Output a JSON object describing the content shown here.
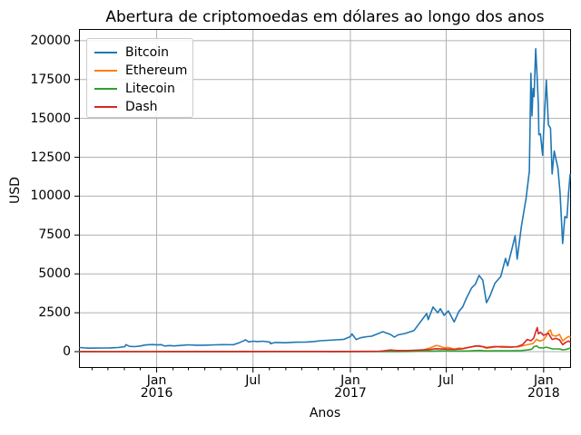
{
  "chart_data": {
    "type": "line",
    "title": "Abertura de criptomoedas em dólares ao longo dos anos",
    "xlabel": "Anos",
    "ylabel": "USD",
    "grid": true,
    "legend_position": "upper-left",
    "grid_color": "#b0b0b0",
    "spine_color": "#000000",
    "x_range": [
      "2015-08-09",
      "2018-02-20"
    ],
    "ylim": [
      -990,
      20690
    ],
    "y_ticks": [
      0,
      2500,
      5000,
      7500,
      10000,
      12500,
      15000,
      17500,
      20000
    ],
    "x_ticks": [
      {
        "date": "2016-01-01",
        "label": "Jan",
        "year": "2016"
      },
      {
        "date": "2016-07-01",
        "label": "Jul",
        "year": ""
      },
      {
        "date": "2017-01-01",
        "label": "Jan",
        "year": "2017"
      },
      {
        "date": "2017-07-01",
        "label": "Jul",
        "year": ""
      },
      {
        "date": "2018-01-01",
        "label": "Jan",
        "year": "2018"
      }
    ],
    "series": [
      {
        "name": "Bitcoin",
        "color": "#1f77b4",
        "points": [
          [
            "2015-08-09",
            265
          ],
          [
            "2015-08-20",
            235
          ],
          [
            "2015-08-25",
            222
          ],
          [
            "2015-09-05",
            230
          ],
          [
            "2015-09-20",
            231
          ],
          [
            "2015-10-05",
            240
          ],
          [
            "2015-10-20",
            264
          ],
          [
            "2015-11-02",
            325
          ],
          [
            "2015-11-04",
            452
          ],
          [
            "2015-11-11",
            338
          ],
          [
            "2015-11-20",
            322
          ],
          [
            "2015-12-01",
            362
          ],
          [
            "2015-12-09",
            418
          ],
          [
            "2015-12-15",
            445
          ],
          [
            "2015-12-25",
            455
          ],
          [
            "2016-01-01",
            434
          ],
          [
            "2016-01-10",
            448
          ],
          [
            "2016-01-16",
            365
          ],
          [
            "2016-01-25",
            392
          ],
          [
            "2016-02-03",
            369
          ],
          [
            "2016-02-15",
            395
          ],
          [
            "2016-03-01",
            435
          ],
          [
            "2016-03-15",
            415
          ],
          [
            "2016-04-01",
            416
          ],
          [
            "2016-04-20",
            438
          ],
          [
            "2016-05-05",
            448
          ],
          [
            "2016-05-25",
            444
          ],
          [
            "2016-06-05",
            573
          ],
          [
            "2016-06-13",
            686
          ],
          [
            "2016-06-17",
            760
          ],
          [
            "2016-06-23",
            625
          ],
          [
            "2016-07-01",
            673
          ],
          [
            "2016-07-10",
            650
          ],
          [
            "2016-07-20",
            672
          ],
          [
            "2016-08-02",
            607
          ],
          [
            "2016-08-03",
            515
          ],
          [
            "2016-08-12",
            590
          ],
          [
            "2016-09-01",
            572
          ],
          [
            "2016-09-20",
            608
          ],
          [
            "2016-10-10",
            618
          ],
          [
            "2016-10-25",
            652
          ],
          [
            "2016-11-05",
            703
          ],
          [
            "2016-11-20",
            730
          ],
          [
            "2016-12-05",
            758
          ],
          [
            "2016-12-20",
            792
          ],
          [
            "2017-01-01",
            966
          ],
          [
            "2017-01-04",
            1135
          ],
          [
            "2017-01-12",
            775
          ],
          [
            "2017-01-20",
            895
          ],
          [
            "2017-02-01",
            965
          ],
          [
            "2017-02-10",
            990
          ],
          [
            "2017-02-24",
            1180
          ],
          [
            "2017-03-03",
            1280
          ],
          [
            "2017-03-12",
            1175
          ],
          [
            "2017-03-18",
            1100
          ],
          [
            "2017-03-25",
            935
          ],
          [
            "2017-04-01",
            1080
          ],
          [
            "2017-04-15",
            1175
          ],
          [
            "2017-05-01",
            1350
          ],
          [
            "2017-05-10",
            1760
          ],
          [
            "2017-05-25",
            2450
          ],
          [
            "2017-05-28",
            2060
          ],
          [
            "2017-06-06",
            2870
          ],
          [
            "2017-06-15",
            2500
          ],
          [
            "2017-06-20",
            2760
          ],
          [
            "2017-06-27",
            2330
          ],
          [
            "2017-07-05",
            2620
          ],
          [
            "2017-07-16",
            1910
          ],
          [
            "2017-07-25",
            2580
          ],
          [
            "2017-08-01",
            2870
          ],
          [
            "2017-08-08",
            3420
          ],
          [
            "2017-08-18",
            4100
          ],
          [
            "2017-08-25",
            4330
          ],
          [
            "2017-09-01",
            4900
          ],
          [
            "2017-09-08",
            4600
          ],
          [
            "2017-09-15",
            3150
          ],
          [
            "2017-09-22",
            3600
          ],
          [
            "2017-10-01",
            4400
          ],
          [
            "2017-10-12",
            4830
          ],
          [
            "2017-10-21",
            6000
          ],
          [
            "2017-10-25",
            5520
          ],
          [
            "2017-11-01",
            6450
          ],
          [
            "2017-11-08",
            7450
          ],
          [
            "2017-11-12",
            5950
          ],
          [
            "2017-11-20",
            8040
          ],
          [
            "2017-11-29",
            9900
          ],
          [
            "2017-12-05",
            11600
          ],
          [
            "2017-12-08",
            17900
          ],
          [
            "2017-12-10",
            15160
          ],
          [
            "2017-12-12",
            16920
          ],
          [
            "2017-12-14",
            16400
          ],
          [
            "2017-12-17",
            19475
          ],
          [
            "2017-12-20",
            17520
          ],
          [
            "2017-12-22",
            15900
          ],
          [
            "2017-12-23",
            13950
          ],
          [
            "2017-12-26",
            14000
          ],
          [
            "2017-12-30",
            12630
          ],
          [
            "2018-01-01",
            14110
          ],
          [
            "2018-01-06",
            17460
          ],
          [
            "2018-01-10",
            14590
          ],
          [
            "2018-01-14",
            14370
          ],
          [
            "2018-01-17",
            11430
          ],
          [
            "2018-01-21",
            12900
          ],
          [
            "2018-01-28",
            11790
          ],
          [
            "2018-02-01",
            10240
          ],
          [
            "2018-02-06",
            6955
          ],
          [
            "2018-02-10",
            8690
          ],
          [
            "2018-02-14",
            8600
          ],
          [
            "2018-02-17",
            10200
          ],
          [
            "2018-02-20",
            11400
          ]
        ]
      },
      {
        "name": "Ethereum",
        "color": "#ff7f0e",
        "points": [
          [
            "2015-08-09",
            1.3
          ],
          [
            "2015-09-01",
            1.35
          ],
          [
            "2015-10-01",
            0.74
          ],
          [
            "2015-11-01",
            1.05
          ],
          [
            "2015-12-01",
            0.87
          ],
          [
            "2016-01-01",
            0.94
          ],
          [
            "2016-01-25",
            2.1
          ],
          [
            "2016-02-10",
            4.5
          ],
          [
            "2016-03-02",
            8.2
          ],
          [
            "2016-03-13",
            15
          ],
          [
            "2016-04-01",
            11.6
          ],
          [
            "2016-05-01",
            8.9
          ],
          [
            "2016-06-01",
            14
          ],
          [
            "2016-06-16",
            20.6
          ],
          [
            "2016-06-18",
            11
          ],
          [
            "2016-07-01",
            12.3
          ],
          [
            "2016-08-01",
            11
          ],
          [
            "2016-09-01",
            11.2
          ],
          [
            "2016-10-01",
            13.3
          ],
          [
            "2016-11-01",
            10.9
          ],
          [
            "2016-12-01",
            8.6
          ],
          [
            "2017-01-01",
            8.2
          ],
          [
            "2017-02-01",
            10.7
          ],
          [
            "2017-03-01",
            15.8
          ],
          [
            "2017-03-17",
            44
          ],
          [
            "2017-04-01",
            50
          ],
          [
            "2017-04-20",
            48
          ],
          [
            "2017-05-01",
            77
          ],
          [
            "2017-05-20",
            124
          ],
          [
            "2017-05-31",
            232
          ],
          [
            "2017-06-12",
            395
          ],
          [
            "2017-06-18",
            359
          ],
          [
            "2017-06-27",
            254
          ],
          [
            "2017-07-05",
            269
          ],
          [
            "2017-07-16",
            157
          ],
          [
            "2017-07-25",
            225
          ],
          [
            "2017-08-01",
            204
          ],
          [
            "2017-08-15",
            299
          ],
          [
            "2017-09-01",
            387
          ],
          [
            "2017-09-15",
            219
          ],
          [
            "2017-10-01",
            303
          ],
          [
            "2017-10-15",
            336
          ],
          [
            "2017-11-01",
            305
          ],
          [
            "2017-11-15",
            315
          ],
          [
            "2017-12-01",
            445
          ],
          [
            "2017-12-12",
            522
          ],
          [
            "2017-12-19",
            793
          ],
          [
            "2017-12-24",
            685
          ],
          [
            "2018-01-01",
            756
          ],
          [
            "2018-01-06",
            1006
          ],
          [
            "2018-01-10",
            1298
          ],
          [
            "2018-01-14",
            1396
          ],
          [
            "2018-01-17",
            1057
          ],
          [
            "2018-01-24",
            990
          ],
          [
            "2018-01-31",
            1109
          ],
          [
            "2018-02-06",
            697
          ],
          [
            "2018-02-12",
            865
          ],
          [
            "2018-02-17",
            976
          ],
          [
            "2018-02-20",
            943
          ]
        ]
      },
      {
        "name": "Litecoin",
        "color": "#2ca02c",
        "points": [
          [
            "2015-08-09",
            4.2
          ],
          [
            "2015-09-01",
            3.8
          ],
          [
            "2015-10-01",
            3
          ],
          [
            "2015-11-01",
            3.1
          ],
          [
            "2015-11-10",
            3.6
          ],
          [
            "2015-12-01",
            3.4
          ],
          [
            "2016-01-01",
            3.5
          ],
          [
            "2016-02-01",
            3.2
          ],
          [
            "2016-03-01",
            3.8
          ],
          [
            "2016-04-01",
            3.3
          ],
          [
            "2016-05-01",
            3.4
          ],
          [
            "2016-06-01",
            4.5
          ],
          [
            "2016-06-17",
            5.3
          ],
          [
            "2016-07-01",
            4.1
          ],
          [
            "2016-08-01",
            4
          ],
          [
            "2016-09-01",
            3.8
          ],
          [
            "2016-10-01",
            3.8
          ],
          [
            "2016-11-01",
            3.9
          ],
          [
            "2016-12-01",
            3.7
          ],
          [
            "2017-01-01",
            4.3
          ],
          [
            "2017-02-01",
            3.9
          ],
          [
            "2017-03-01",
            3.8
          ],
          [
            "2017-04-01",
            7.3
          ],
          [
            "2017-04-20",
            10.4
          ],
          [
            "2017-05-02",
            15.6
          ],
          [
            "2017-05-10",
            30
          ],
          [
            "2017-05-25",
            33
          ],
          [
            "2017-06-06",
            34.5
          ],
          [
            "2017-06-20",
            47
          ],
          [
            "2017-07-05",
            48
          ],
          [
            "2017-07-16",
            39
          ],
          [
            "2017-08-01",
            42.5
          ],
          [
            "2017-08-15",
            46.5
          ],
          [
            "2017-09-01",
            77
          ],
          [
            "2017-09-15",
            47
          ],
          [
            "2017-10-01",
            55
          ],
          [
            "2017-11-01",
            55
          ],
          [
            "2017-11-20",
            71
          ],
          [
            "2017-12-01",
            103
          ],
          [
            "2017-12-09",
            151
          ],
          [
            "2017-12-12",
            233
          ],
          [
            "2017-12-13",
            317
          ],
          [
            "2017-12-19",
            366
          ],
          [
            "2017-12-23",
            250
          ],
          [
            "2017-12-31",
            232
          ],
          [
            "2018-01-06",
            285
          ],
          [
            "2018-01-17",
            183
          ],
          [
            "2018-01-28",
            177
          ],
          [
            "2018-02-01",
            163
          ],
          [
            "2018-02-06",
            115
          ],
          [
            "2018-02-12",
            143
          ],
          [
            "2018-02-20",
            222
          ]
        ]
      },
      {
        "name": "Dash",
        "color": "#d62728",
        "points": [
          [
            "2015-08-09",
            3.2
          ],
          [
            "2015-09-01",
            2.5
          ],
          [
            "2015-10-01",
            2.4
          ],
          [
            "2015-11-01",
            2.3
          ],
          [
            "2015-12-01",
            3.1
          ],
          [
            "2016-01-01",
            3.4
          ],
          [
            "2016-02-01",
            4
          ],
          [
            "2016-03-01",
            4.5
          ],
          [
            "2016-04-01",
            6.8
          ],
          [
            "2016-05-01",
            7.2
          ],
          [
            "2016-06-01",
            7.7
          ],
          [
            "2016-07-01",
            8
          ],
          [
            "2016-08-01",
            9.5
          ],
          [
            "2016-09-01",
            11.8
          ],
          [
            "2016-10-01",
            11.2
          ],
          [
            "2016-11-01",
            9.6
          ],
          [
            "2016-12-01",
            8.8
          ],
          [
            "2017-01-01",
            11.2
          ],
          [
            "2017-02-01",
            16.5
          ],
          [
            "2017-02-25",
            26
          ],
          [
            "2017-03-05",
            45
          ],
          [
            "2017-03-18",
            105
          ],
          [
            "2017-03-25",
            82
          ],
          [
            "2017-04-01",
            72
          ],
          [
            "2017-04-20",
            68
          ],
          [
            "2017-05-01",
            87
          ],
          [
            "2017-05-20",
            110
          ],
          [
            "2017-06-01",
            138
          ],
          [
            "2017-06-12",
            190
          ],
          [
            "2017-06-27",
            165
          ],
          [
            "2017-07-16",
            148
          ],
          [
            "2017-08-01",
            180
          ],
          [
            "2017-08-26",
            370
          ],
          [
            "2017-09-08",
            330
          ],
          [
            "2017-09-15",
            265
          ],
          [
            "2017-10-01",
            330
          ],
          [
            "2017-10-15",
            300
          ],
          [
            "2017-11-01",
            285
          ],
          [
            "2017-11-12",
            320
          ],
          [
            "2017-11-22",
            445
          ],
          [
            "2017-12-01",
            780
          ],
          [
            "2017-12-08",
            700
          ],
          [
            "2017-12-13",
            855
          ],
          [
            "2017-12-20",
            1550
          ],
          [
            "2017-12-22",
            1150
          ],
          [
            "2017-12-26",
            1250
          ],
          [
            "2018-01-01",
            1050
          ],
          [
            "2018-01-10",
            1180
          ],
          [
            "2018-01-17",
            780
          ],
          [
            "2018-01-24",
            850
          ],
          [
            "2018-01-31",
            760
          ],
          [
            "2018-02-06",
            450
          ],
          [
            "2018-02-12",
            600
          ],
          [
            "2018-02-17",
            680
          ],
          [
            "2018-02-20",
            610
          ]
        ]
      }
    ]
  }
}
